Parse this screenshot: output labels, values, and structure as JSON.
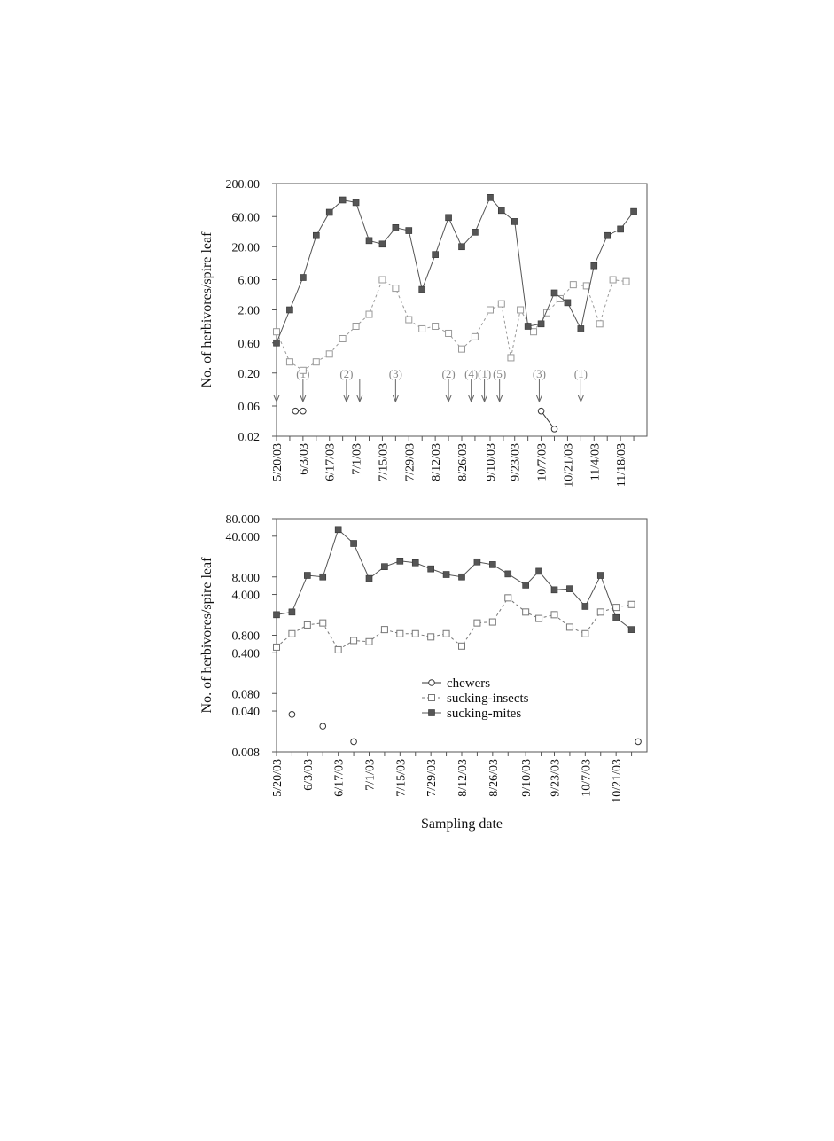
{
  "chart_data": [
    {
      "type": "line",
      "ylabel": "No. of herbivores/spire leaf",
      "xlabel": "",
      "y_scale": "log",
      "ylim": [
        0.02,
        200
      ],
      "y_ticks": [
        "0.02",
        "0.06",
        "0.20",
        "0.60",
        "2.00",
        "6.00",
        "20.00",
        "60.00",
        "200.00"
      ],
      "x_ticks": [
        "5/20/03",
        "6/3/03",
        "6/17/03",
        "7/1/03",
        "7/15/03",
        "7/29/03",
        "8/12/03",
        "8/26/03",
        "9/10/03",
        "9/23/03",
        "10/7/03",
        "10/21/03",
        "11/4/03",
        "11/18/03"
      ],
      "x_range": [
        "5/20/03",
        "12/2/03"
      ],
      "grid": false,
      "series": [
        {
          "name": "chewers",
          "color": "#333333",
          "points": [
            {
              "x": "5/30/03",
              "y": 0.05
            },
            {
              "x": "6/3/03",
              "y": 0.05
            },
            {
              "x": "10/7/03",
              "y": 0.05
            },
            {
              "x": "10/14/03",
              "y": 0.026
            }
          ],
          "connected": [
            [
              0,
              1
            ],
            [
              2,
              3
            ]
          ]
        },
        {
          "name": "sucking-insects",
          "color": "#999999",
          "points": [
            {
              "x": "5/20/03",
              "y": 0.9
            },
            {
              "x": "5/27/03",
              "y": 0.3
            },
            {
              "x": "6/3/03",
              "y": 0.22
            },
            {
              "x": "6/10/03",
              "y": 0.3
            },
            {
              "x": "6/17/03",
              "y": 0.4
            },
            {
              "x": "6/24/03",
              "y": 0.7
            },
            {
              "x": "7/1/03",
              "y": 1.1
            },
            {
              "x": "7/8/03",
              "y": 1.7
            },
            {
              "x": "7/15/03",
              "y": 6.0
            },
            {
              "x": "7/22/03",
              "y": 4.4
            },
            {
              "x": "7/29/03",
              "y": 1.4
            },
            {
              "x": "8/5/03",
              "y": 1.0
            },
            {
              "x": "8/12/03",
              "y": 1.1
            },
            {
              "x": "8/19/03",
              "y": 0.85
            },
            {
              "x": "8/26/03",
              "y": 0.48
            },
            {
              "x": "9/2/03",
              "y": 0.75
            },
            {
              "x": "9/10/03",
              "y": 2.0
            },
            {
              "x": "9/16/03",
              "y": 2.5
            },
            {
              "x": "9/21/03",
              "y": 0.35
            },
            {
              "x": "9/26/03",
              "y": 2.0
            },
            {
              "x": "10/3/03",
              "y": 0.9
            },
            {
              "x": "10/10/03",
              "y": 1.8
            },
            {
              "x": "10/17/03",
              "y": 3.0
            },
            {
              "x": "10/24/03",
              "y": 5.0
            },
            {
              "x": "10/31/03",
              "y": 4.8
            },
            {
              "x": "11/7/03",
              "y": 1.2
            },
            {
              "x": "11/14/03",
              "y": 6.0
            },
            {
              "x": "11/21/03",
              "y": 5.6
            }
          ]
        },
        {
          "name": "sucking-mites",
          "color": "#555555",
          "points": [
            {
              "x": "5/20/03",
              "y": 0.6
            },
            {
              "x": "5/27/03",
              "y": 2.0
            },
            {
              "x": "6/3/03",
              "y": 6.5
            },
            {
              "x": "6/10/03",
              "y": 30
            },
            {
              "x": "6/17/03",
              "y": 70
            },
            {
              "x": "6/24/03",
              "y": 110
            },
            {
              "x": "7/1/03",
              "y": 100
            },
            {
              "x": "7/8/03",
              "y": 25
            },
            {
              "x": "7/15/03",
              "y": 22
            },
            {
              "x": "7/22/03",
              "y": 40
            },
            {
              "x": "7/29/03",
              "y": 36
            },
            {
              "x": "8/5/03",
              "y": 4.2
            },
            {
              "x": "8/12/03",
              "y": 15
            },
            {
              "x": "8/19/03",
              "y": 58
            },
            {
              "x": "8/26/03",
              "y": 20
            },
            {
              "x": "9/2/03",
              "y": 34
            },
            {
              "x": "9/10/03",
              "y": 120
            },
            {
              "x": "9/16/03",
              "y": 75
            },
            {
              "x": "9/23/03",
              "y": 50
            },
            {
              "x": "9/30/03",
              "y": 1.1
            },
            {
              "x": "10/7/03",
              "y": 1.2
            },
            {
              "x": "10/14/03",
              "y": 3.7
            },
            {
              "x": "10/21/03",
              "y": 2.6
            },
            {
              "x": "10/28/03",
              "y": 1.0
            },
            {
              "x": "11/4/03",
              "y": 10
            },
            {
              "x": "11/11/03",
              "y": 30
            },
            {
              "x": "11/18/03",
              "y": 38
            },
            {
              "x": "11/25/03",
              "y": 72
            }
          ]
        }
      ],
      "annotations": [
        {
          "x": "5/20/03",
          "label": ""
        },
        {
          "x": "6/3/03",
          "label": "(1)"
        },
        {
          "x": "6/26/03",
          "label": "(2)"
        },
        {
          "x": "7/3/03",
          "label": ""
        },
        {
          "x": "7/22/03",
          "label": "(3)"
        },
        {
          "x": "8/19/03",
          "label": "(2)"
        },
        {
          "x": "8/31/03",
          "label": "(4)"
        },
        {
          "x": "9/7/03",
          "label": "(1)"
        },
        {
          "x": "9/15/03",
          "label": "(5)"
        },
        {
          "x": "10/6/03",
          "label": "(3)"
        },
        {
          "x": "10/28/03",
          "label": "(1)"
        }
      ]
    },
    {
      "type": "line",
      "ylabel": "No. of herbivores/spire leaf",
      "xlabel": "Sampling date",
      "y_scale": "log",
      "ylim": [
        0.008,
        80
      ],
      "y_ticks": [
        "0.008",
        "0.040",
        "0.080",
        "0.400",
        "0.800",
        "4.000",
        "8.000",
        "40.000",
        "80.000"
      ],
      "x_ticks": [
        "5/20/03",
        "6/3/03",
        "6/17/03",
        "7/1/03",
        "7/15/03",
        "7/29/03",
        "8/12/03",
        "8/26/03",
        "9/10/03",
        "9/23/03",
        "10/7/03",
        "10/21/03"
      ],
      "x_range": [
        "5/20/03",
        "11/4/03"
      ],
      "grid": false,
      "legend": "center",
      "series": [
        {
          "name": "chewers",
          "color": "#333333",
          "points": [
            {
              "x": "5/27/03",
              "y": 0.035
            },
            {
              "x": "6/10/03",
              "y": 0.022
            },
            {
              "x": "6/24/03",
              "y": 0.012
            },
            {
              "x": "10/31/03",
              "y": 0.012
            }
          ],
          "connected": []
        },
        {
          "name": "sucking-insects",
          "color": "#777777",
          "points": [
            {
              "x": "5/20/03",
              "y": 0.5
            },
            {
              "x": "5/27/03",
              "y": 0.85
            },
            {
              "x": "6/3/03",
              "y": 1.2
            },
            {
              "x": "6/10/03",
              "y": 1.3
            },
            {
              "x": "6/17/03",
              "y": 0.45
            },
            {
              "x": "6/24/03",
              "y": 0.65
            },
            {
              "x": "7/1/03",
              "y": 0.62
            },
            {
              "x": "7/8/03",
              "y": 1.0
            },
            {
              "x": "7/15/03",
              "y": 0.85
            },
            {
              "x": "7/22/03",
              "y": 0.85
            },
            {
              "x": "7/29/03",
              "y": 0.75
            },
            {
              "x": "8/5/03",
              "y": 0.85
            },
            {
              "x": "8/12/03",
              "y": 0.52
            },
            {
              "x": "8/19/03",
              "y": 1.3
            },
            {
              "x": "8/26/03",
              "y": 1.35
            },
            {
              "x": "9/2/03",
              "y": 3.5
            },
            {
              "x": "9/10/03",
              "y": 2.0
            },
            {
              "x": "9/16/03",
              "y": 1.55
            },
            {
              "x": "9/23/03",
              "y": 1.8
            },
            {
              "x": "9/30/03",
              "y": 1.1
            },
            {
              "x": "10/7/03",
              "y": 0.85
            },
            {
              "x": "10/14/03",
              "y": 2.0
            },
            {
              "x": "10/21/03",
              "y": 2.4
            },
            {
              "x": "10/28/03",
              "y": 2.7
            }
          ]
        },
        {
          "name": "sucking-mites",
          "color": "#555555",
          "points": [
            {
              "x": "5/20/03",
              "y": 1.8
            },
            {
              "x": "5/27/03",
              "y": 2.0
            },
            {
              "x": "6/3/03",
              "y": 8.5
            },
            {
              "x": "6/10/03",
              "y": 8.0
            },
            {
              "x": "6/17/03",
              "y": 52
            },
            {
              "x": "6/24/03",
              "y": 30
            },
            {
              "x": "7/1/03",
              "y": 7.5
            },
            {
              "x": "7/8/03",
              "y": 12
            },
            {
              "x": "7/15/03",
              "y": 15
            },
            {
              "x": "7/22/03",
              "y": 14
            },
            {
              "x": "7/29/03",
              "y": 11
            },
            {
              "x": "8/5/03",
              "y": 8.8
            },
            {
              "x": "8/12/03",
              "y": 8.0
            },
            {
              "x": "8/19/03",
              "y": 14.5
            },
            {
              "x": "8/26/03",
              "y": 13
            },
            {
              "x": "9/2/03",
              "y": 9.0
            },
            {
              "x": "9/10/03",
              "y": 5.8
            },
            {
              "x": "9/16/03",
              "y": 10.0
            },
            {
              "x": "9/23/03",
              "y": 4.8
            },
            {
              "x": "9/30/03",
              "y": 5.0
            },
            {
              "x": "10/7/03",
              "y": 2.5
            },
            {
              "x": "10/14/03",
              "y": 8.5
            },
            {
              "x": "10/21/03",
              "y": 1.6
            },
            {
              "x": "10/28/03",
              "y": 1.0
            }
          ]
        }
      ]
    }
  ]
}
